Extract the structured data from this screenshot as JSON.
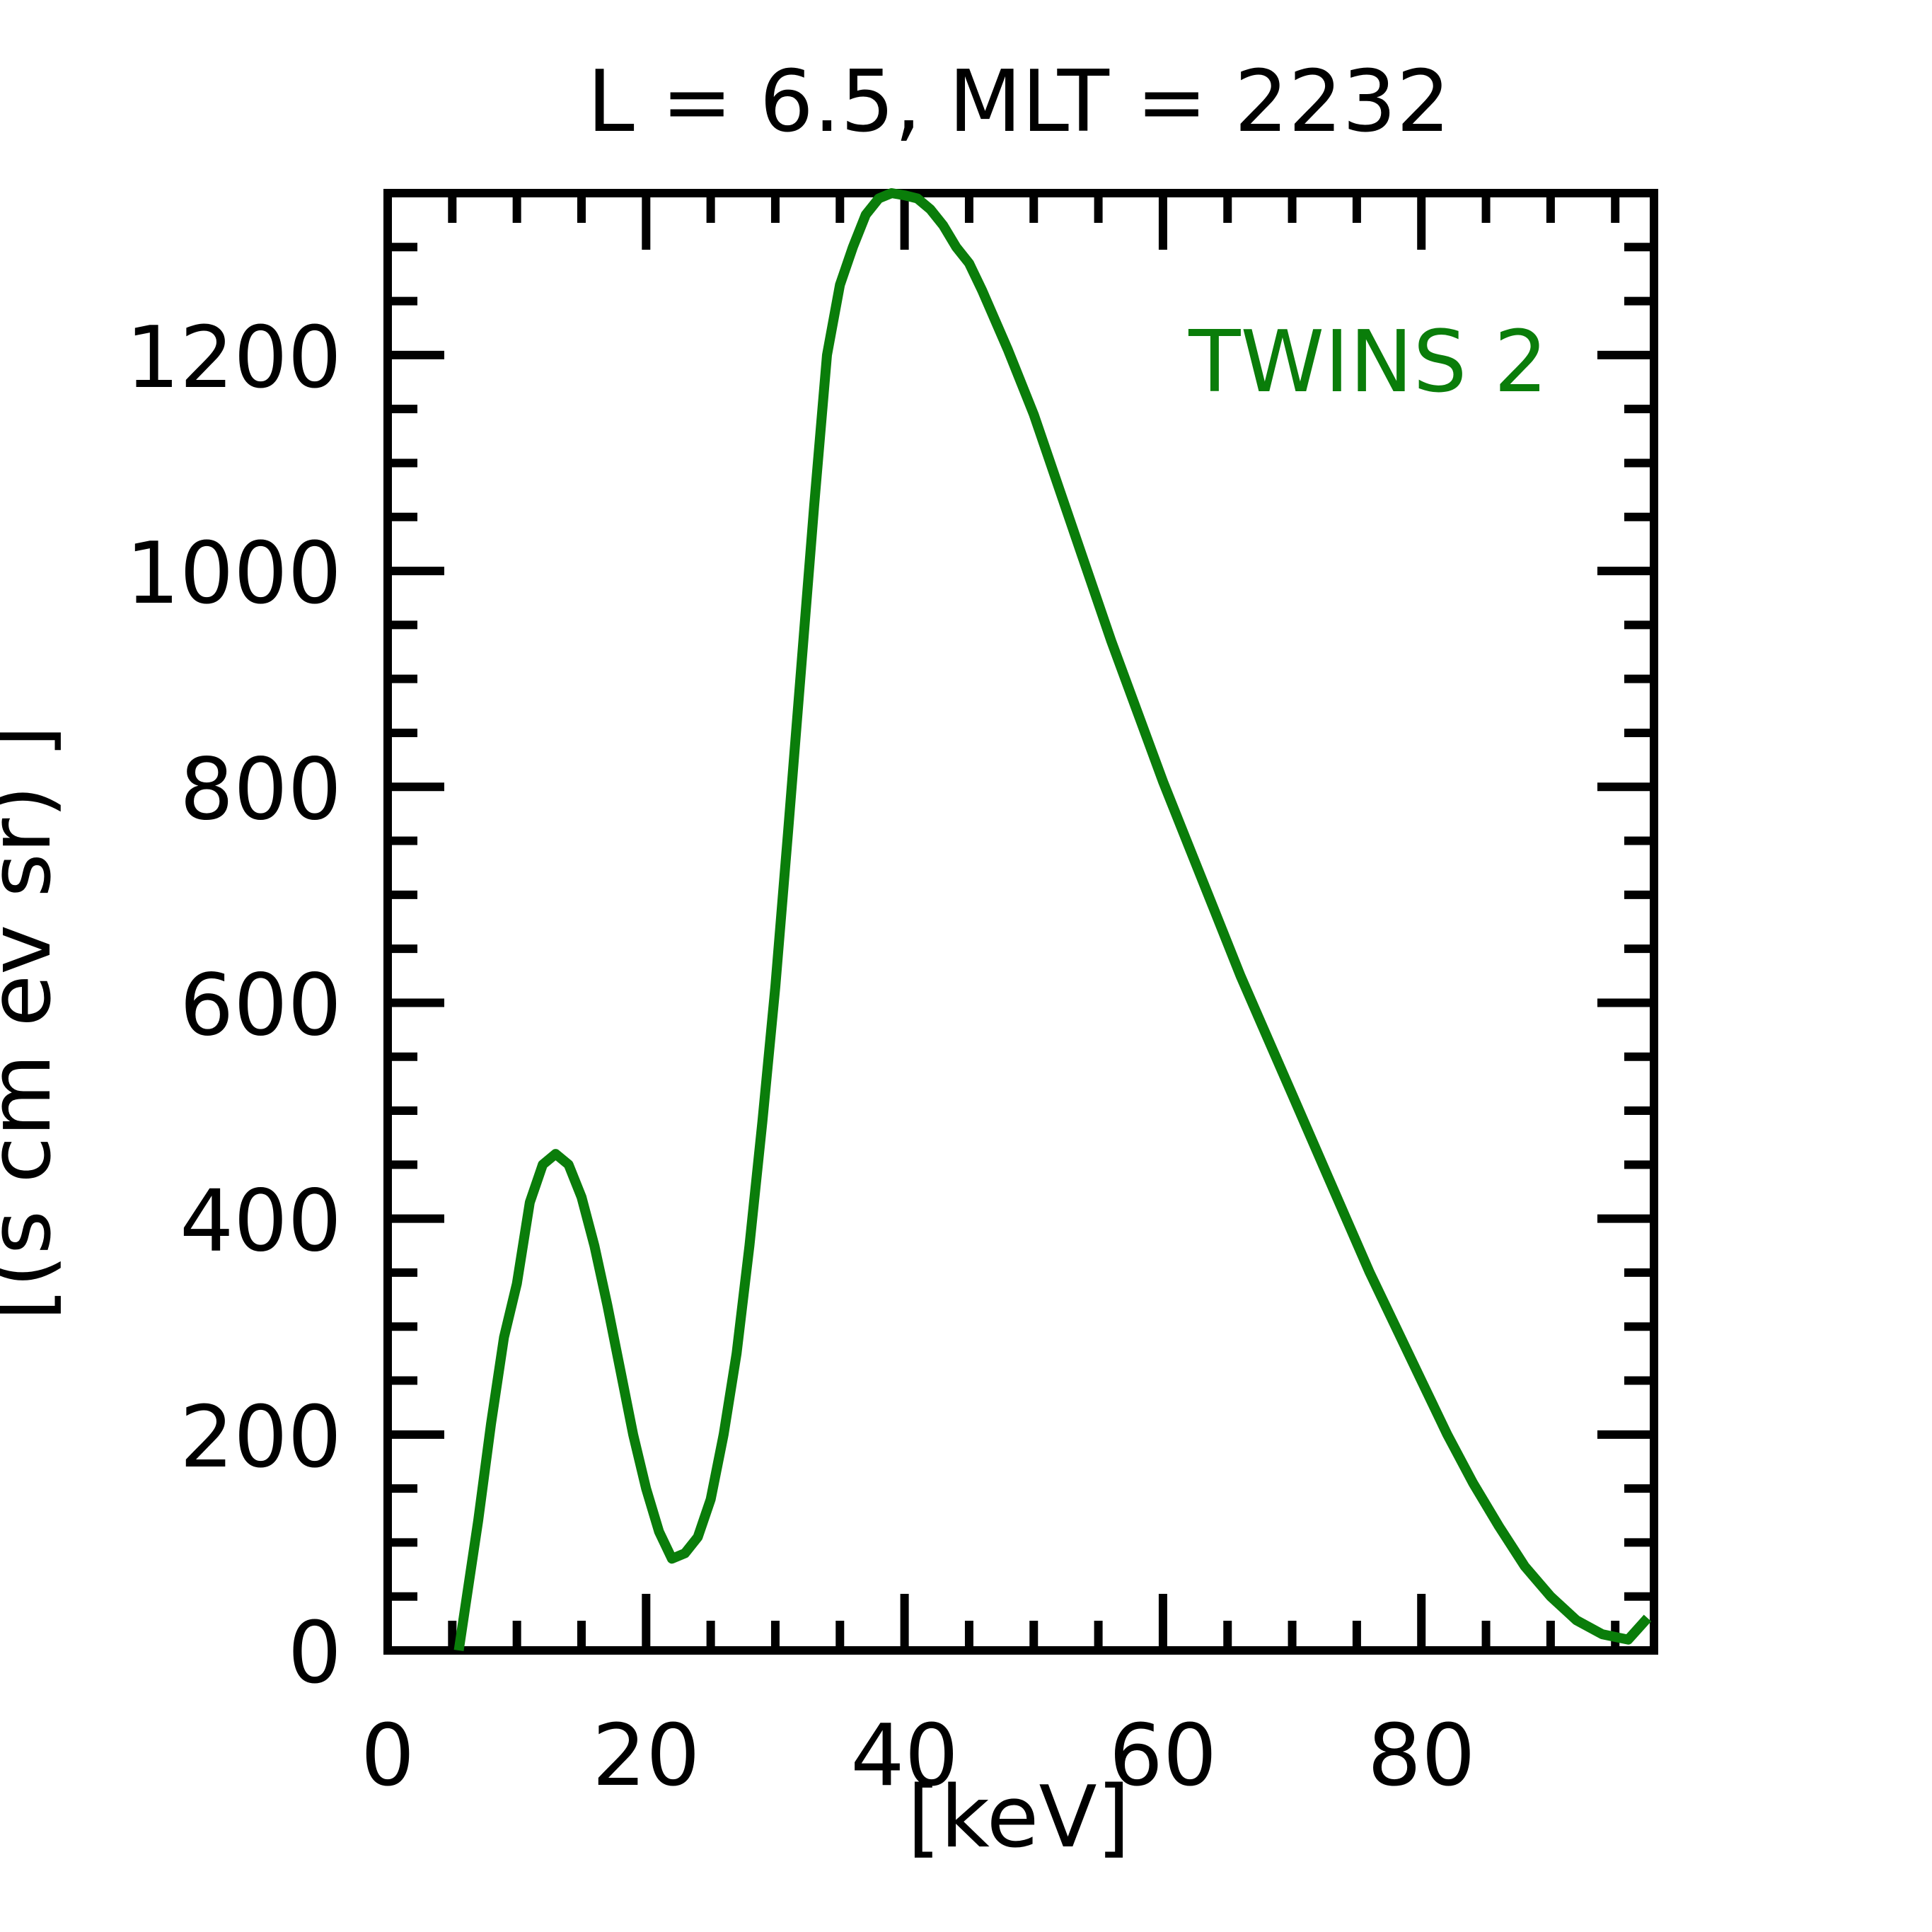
{
  "chart_data": {
    "type": "line",
    "title": "L =  6.5, MLT = 2232",
    "xlabel": "[keV]",
    "ylabel": "[(s cm ev sr)  ]",
    "xlim": [
      0,
      98
    ],
    "ylim": [
      0,
      1350
    ],
    "xticks": [
      0,
      20,
      40,
      60,
      80
    ],
    "yticks": [
      0,
      200,
      400,
      600,
      800,
      1000,
      1200
    ],
    "xminor_step": 5,
    "yminor_step": 50,
    "grid": false,
    "legend_position": "top-right",
    "series": [
      {
        "name": "TWINS 2",
        "color": "#0a7d0a",
        "x": [
          5.5,
          6,
          7,
          8,
          9,
          10,
          11,
          12,
          13,
          14,
          15,
          16,
          17,
          18,
          19,
          20,
          21,
          22,
          23,
          24,
          25,
          26,
          27,
          28,
          29,
          30,
          31,
          32,
          33,
          34,
          35,
          36,
          37,
          38,
          39,
          40,
          41,
          42,
          43,
          44,
          45,
          46,
          48,
          50,
          52,
          54,
          56,
          58,
          60,
          62,
          64,
          66,
          68,
          70,
          72,
          74,
          76,
          78,
          80,
          82,
          84,
          86,
          88,
          90,
          92,
          94,
          96,
          97.5
        ],
        "y": [
          0,
          40,
          120,
          210,
          290,
          340,
          415,
          450,
          460,
          450,
          420,
          375,
          320,
          260,
          200,
          150,
          110,
          85,
          90,
          105,
          140,
          200,
          275,
          375,
          490,
          615,
          760,
          910,
          1060,
          1200,
          1265,
          1300,
          1330,
          1345,
          1350,
          1348,
          1345,
          1335,
          1320,
          1300,
          1285,
          1260,
          1205,
          1145,
          1075,
          1005,
          935,
          870,
          805,
          745,
          685,
          625,
          570,
          515,
          460,
          405,
          350,
          300,
          250,
          200,
          155,
          115,
          78,
          50,
          28,
          15,
          10,
          30
        ]
      }
    ]
  }
}
